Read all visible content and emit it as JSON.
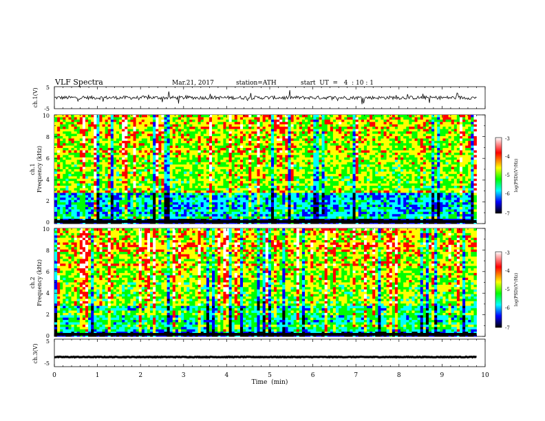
{
  "header": {
    "title": "VLF  Spectra",
    "date": "Mar.21, 2017",
    "station": "station=ATH",
    "start": "start  UT  =   4  : 10 : 1"
  },
  "x_axis": {
    "label": "Time  (min)",
    "range": [
      0,
      10
    ],
    "ticks": [
      "0",
      "1",
      "2",
      "3",
      "4",
      "5",
      "6",
      "7",
      "8",
      "9",
      "10"
    ]
  },
  "ch1_waveform": {
    "label": "ch.1(V)",
    "ticks": [
      "5",
      "-5"
    ]
  },
  "ch1_spectrogram": {
    "label_ch": "ch.1",
    "label_freq": "Frequency  (kHz)",
    "ticks": [
      "10",
      "8",
      "6",
      "4",
      "2",
      "0"
    ],
    "colorbar": {
      "label": "log(PSD)(V²/Hz)",
      "ticks": [
        "-3",
        "-4",
        "-5",
        "-6",
        "-7"
      ]
    }
  },
  "ch2_spectrogram": {
    "label_ch": "ch.2",
    "label_freq": "Frequency  (kHz)",
    "ticks": [
      "10",
      "8",
      "6",
      "4",
      "2",
      "0"
    ],
    "colorbar": {
      "label": "log(PSD)(V²/Hz)",
      "ticks": [
        "-3",
        "-4",
        "-5",
        "-6",
        "-7"
      ]
    }
  },
  "ch3_waveform": {
    "label": "ch.3(V)",
    "ticks": [
      "5",
      "-5"
    ]
  },
  "colors": {
    "colormap": [
      "#ffffff",
      "#ff0000",
      "#ffff00",
      "#00ff00",
      "#00ffff",
      "#0000ff",
      "#000000"
    ]
  },
  "chart_data": [
    {
      "type": "line",
      "panel": "ch.1(V)",
      "x_range": [
        0,
        9.8
      ],
      "ylim": [
        -5,
        5
      ],
      "y_mean": 0
    },
    {
      "type": "heatmap",
      "panel": "ch.1",
      "x_range": [
        0,
        9.8
      ],
      "ylim": [
        0,
        10
      ],
      "value_range": [
        -7,
        -3
      ]
    },
    {
      "type": "heatmap",
      "panel": "ch.2",
      "x_range": [
        0,
        9.8
      ],
      "ylim": [
        0,
        10
      ],
      "value_range": [
        -7,
        -3
      ]
    },
    {
      "type": "line",
      "panel": "ch.3(V)",
      "x_range": [
        0,
        9.8
      ],
      "ylim": [
        -5,
        5
      ],
      "y_mean": -1.5
    }
  ]
}
